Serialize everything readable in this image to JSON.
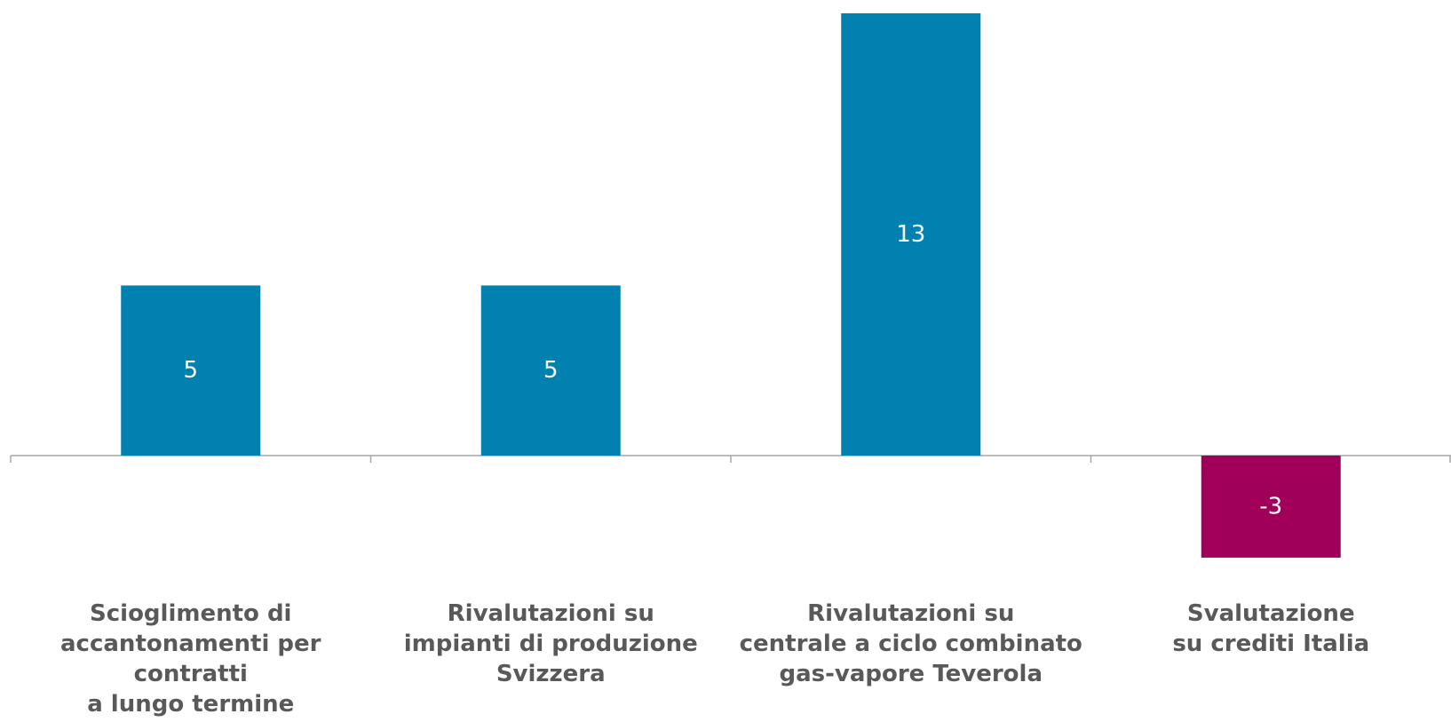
{
  "chart_data": {
    "type": "bar",
    "categories": [
      "Scioglimento di\naccantonamenti per contratti\na lungo termine",
      "Rivalutazioni su\nimpianti di produzione\nSvizzera",
      "Rivalutazioni su\ncentrale a ciclo combinato\ngas-vapore Teverola",
      "Svalutazione\nsu crediti Italia"
    ],
    "values": [
      5,
      5,
      13,
      -3
    ],
    "data_labels": [
      "5",
      "5",
      "13",
      "-3"
    ],
    "colors": {
      "positive": "#0081AF",
      "negative": "#A0005A",
      "axis": "#A6A6A6",
      "bar_label": "#FFFFFF",
      "category_label": "#595959"
    },
    "title": "",
    "xlabel": "",
    "ylabel": "",
    "ylim": [
      -3,
      13
    ],
    "grid": false,
    "legend": "none"
  }
}
